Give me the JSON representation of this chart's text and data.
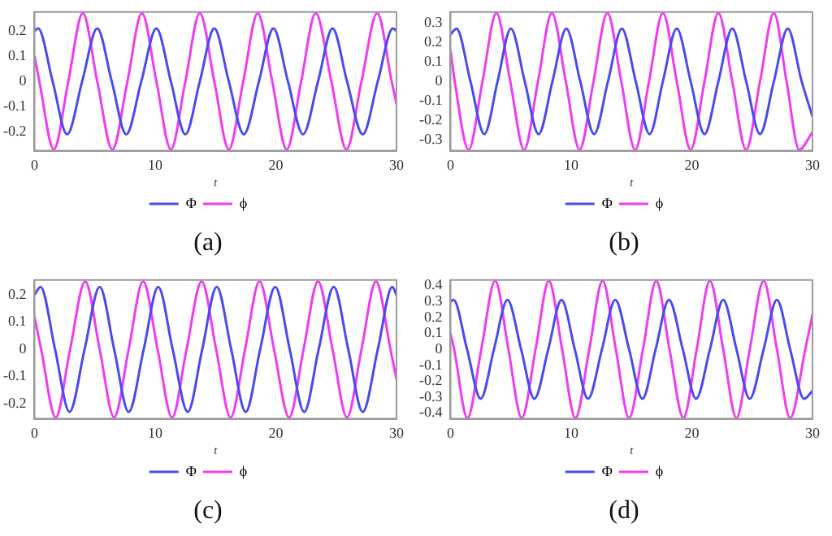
{
  "chart_data": [
    {
      "type": "line",
      "xlabel": "t",
      "annotations": [
        "(a)"
      ],
      "xlim": [
        0,
        30
      ],
      "xticks": [
        0,
        10,
        20,
        30
      ],
      "ylim": [
        -0.275,
        0.275
      ],
      "yticks": [
        -0.2,
        -0.1,
        0,
        0.1,
        0.2
      ],
      "grid": false,
      "legend": "bottom",
      "marker": "none",
      "line_style": "solid",
      "series": [
        {
          "name": "Φ",
          "color": "#4a4af0",
          "x": [
            0,
            0.3,
            1.5,
            2.7,
            3.95,
            5.2,
            6.4,
            7.6,
            8.85,
            10.1,
            11.3,
            12.5,
            13.7,
            14.9,
            16.1,
            17.35,
            18.6,
            19.8,
            21.0,
            22.25,
            23.5,
            24.7,
            25.9,
            27.2,
            28.45,
            29.7,
            30
          ],
          "values": [
            0.2,
            0.21,
            0,
            -0.21,
            0,
            0.21,
            0,
            -0.21,
            0,
            0.21,
            0,
            -0.21,
            0,
            0.21,
            0,
            -0.21,
            0,
            0.21,
            0,
            -0.21,
            0,
            0.21,
            0,
            -0.21,
            0,
            0.21,
            0.2
          ]
        },
        {
          "name": "ϕ",
          "color": "#f03cf0",
          "x": [
            0,
            0.4,
            1.6,
            2.8,
            4.0,
            5.2,
            6.45,
            7.7,
            8.9,
            10.1,
            11.3,
            12.5,
            13.7,
            14.9,
            16.1,
            17.3,
            18.5,
            19.7,
            20.9,
            22.1,
            23.3,
            24.6,
            25.85,
            27.1,
            28.4,
            29.6,
            30
          ],
          "values": [
            0.1,
            0,
            -0.27,
            0,
            0.27,
            0,
            -0.27,
            0,
            0.27,
            0,
            -0.27,
            0,
            0.27,
            0,
            -0.27,
            0,
            0.27,
            0,
            -0.27,
            0,
            0.27,
            0,
            -0.27,
            0,
            0.27,
            0,
            -0.09
          ]
        }
      ]
    },
    {
      "type": "line",
      "xlabel": "t",
      "annotations": [
        "(b)"
      ],
      "xlim": [
        0,
        30
      ],
      "xticks": [
        0,
        10,
        20,
        30
      ],
      "ylim": [
        -0.355,
        0.355
      ],
      "yticks": [
        -0.3,
        -0.2,
        -0.1,
        0,
        0.1,
        0.2,
        0.3
      ],
      "grid": false,
      "legend": "bottom",
      "marker": "none",
      "line_style": "solid",
      "series": [
        {
          "name": "Φ",
          "color": "#4a4af0",
          "x": [
            0,
            0.5,
            1.65,
            2.8,
            3.9,
            5.0,
            6.15,
            7.3,
            8.45,
            9.6,
            10.75,
            11.9,
            13.05,
            14.2,
            15.35,
            16.5,
            17.6,
            18.75,
            19.9,
            21.05,
            22.2,
            23.35,
            24.5,
            25.65,
            26.8,
            27.95,
            29.1,
            30
          ],
          "values": [
            0.24,
            0.27,
            0,
            -0.27,
            0,
            0.27,
            0,
            -0.27,
            0,
            0.27,
            0,
            -0.27,
            0,
            0.27,
            0,
            -0.27,
            0,
            0.27,
            0,
            -0.27,
            0,
            0.27,
            0,
            -0.27,
            0,
            0.27,
            0,
            -0.18
          ]
        },
        {
          "name": "ϕ",
          "color": "#f03cf0",
          "x": [
            0,
            0.35,
            1.5,
            2.65,
            3.8,
            4.95,
            6.1,
            7.25,
            8.4,
            9.55,
            10.7,
            11.85,
            13.0,
            14.15,
            15.3,
            16.45,
            17.6,
            18.75,
            19.9,
            21.05,
            22.2,
            23.35,
            24.5,
            25.65,
            26.8,
            27.85,
            28.9,
            30
          ],
          "values": [
            0.16,
            0,
            -0.35,
            0,
            0.35,
            0,
            -0.35,
            0,
            0.35,
            0,
            -0.35,
            0,
            0.35,
            0,
            -0.35,
            0,
            0.35,
            0,
            -0.35,
            0,
            0.35,
            0,
            -0.35,
            0,
            0.35,
            0,
            -0.35,
            -0.26
          ]
        }
      ]
    },
    {
      "type": "line",
      "xlabel": "t",
      "annotations": [
        "(c)"
      ],
      "xlim": [
        0,
        30
      ],
      "xticks": [
        0,
        10,
        20,
        30
      ],
      "ylim": [
        -0.255,
        0.255
      ],
      "yticks": [
        -0.2,
        -0.1,
        0,
        0.1,
        0.2
      ],
      "grid": false,
      "legend": "bottom",
      "marker": "none",
      "line_style": "solid",
      "series": [
        {
          "name": "Φ",
          "color": "#4a4af0",
          "x": [
            0,
            0.5,
            1.7,
            2.9,
            4.15,
            5.4,
            6.6,
            7.8,
            9.05,
            10.25,
            11.45,
            12.7,
            13.9,
            15.1,
            16.3,
            17.5,
            18.7,
            19.95,
            21.15,
            22.35,
            23.55,
            24.8,
            26.0,
            27.2,
            28.45,
            29.65,
            30
          ],
          "values": [
            0.2,
            0.23,
            0,
            -0.23,
            0,
            0.23,
            0,
            -0.23,
            0,
            0.23,
            0,
            -0.23,
            0,
            0.23,
            0,
            -0.23,
            0,
            0.23,
            0,
            -0.23,
            0,
            0.23,
            0,
            -0.23,
            0,
            0.23,
            0.2
          ]
        },
        {
          "name": "ϕ",
          "color": "#f03cf0",
          "x": [
            0,
            0.55,
            1.75,
            2.95,
            4.2,
            5.4,
            6.6,
            7.8,
            9.0,
            10.2,
            11.4,
            12.6,
            13.85,
            15.05,
            16.25,
            17.45,
            18.65,
            19.85,
            21.1,
            22.3,
            23.5,
            24.7,
            25.9,
            27.1,
            28.3,
            29.5,
            30
          ],
          "values": [
            0.12,
            0,
            -0.25,
            0,
            0.25,
            0,
            -0.25,
            0,
            0.25,
            0,
            -0.25,
            0,
            0.25,
            0,
            -0.25,
            0,
            0.25,
            0,
            -0.25,
            0,
            0.25,
            0,
            -0.25,
            0,
            0.25,
            0,
            -0.11
          ]
        }
      ]
    },
    {
      "type": "line",
      "xlabel": "t",
      "annotations": [
        "(d)"
      ],
      "xlim": [
        0,
        30
      ],
      "xticks": [
        0,
        10,
        20,
        30
      ],
      "ylim": [
        -0.435,
        0.435
      ],
      "yticks": [
        -0.4,
        -0.3,
        -0.2,
        -0.1,
        0,
        0.1,
        0.2,
        0.3,
        0.4
      ],
      "grid": false,
      "legend": "bottom",
      "marker": "none",
      "line_style": "solid",
      "series": [
        {
          "name": "Φ",
          "color": "#4a4af0",
          "x": [
            0,
            0.25,
            1.37,
            2.5,
            3.6,
            4.72,
            5.85,
            6.95,
            8.1,
            9.2,
            10.3,
            11.4,
            12.55,
            13.65,
            14.8,
            15.9,
            17.0,
            18.1,
            19.25,
            20.35,
            21.5,
            22.6,
            23.7,
            24.8,
            25.95,
            27.05,
            28.15,
            29.3,
            30
          ],
          "values": [
            0.3,
            0.31,
            0,
            -0.31,
            0,
            0.31,
            0,
            -0.31,
            0,
            0.31,
            0,
            -0.31,
            0,
            0.31,
            0,
            -0.31,
            0,
            0.31,
            0,
            -0.31,
            0,
            0.31,
            0,
            -0.31,
            0,
            0.31,
            0,
            -0.31,
            -0.26
          ]
        },
        {
          "name": "ϕ",
          "color": "#f03cf0",
          "x": [
            0,
            0.3,
            1.4,
            2.55,
            3.7,
            4.8,
            5.9,
            7.05,
            8.15,
            9.25,
            10.35,
            11.5,
            12.6,
            13.7,
            14.8,
            15.95,
            17.05,
            18.15,
            19.3,
            20.4,
            21.5,
            22.6,
            23.7,
            24.8,
            25.95,
            27.05,
            28.15,
            29.4,
            30
          ],
          "values": [
            0.1,
            0,
            -0.43,
            0,
            0.43,
            0,
            -0.43,
            0,
            0.43,
            0,
            -0.43,
            0,
            0.43,
            0,
            -0.43,
            0,
            0.43,
            0,
            -0.43,
            0,
            0.43,
            0,
            -0.43,
            0,
            0.43,
            0,
            -0.43,
            0,
            0.22
          ]
        }
      ]
    }
  ]
}
